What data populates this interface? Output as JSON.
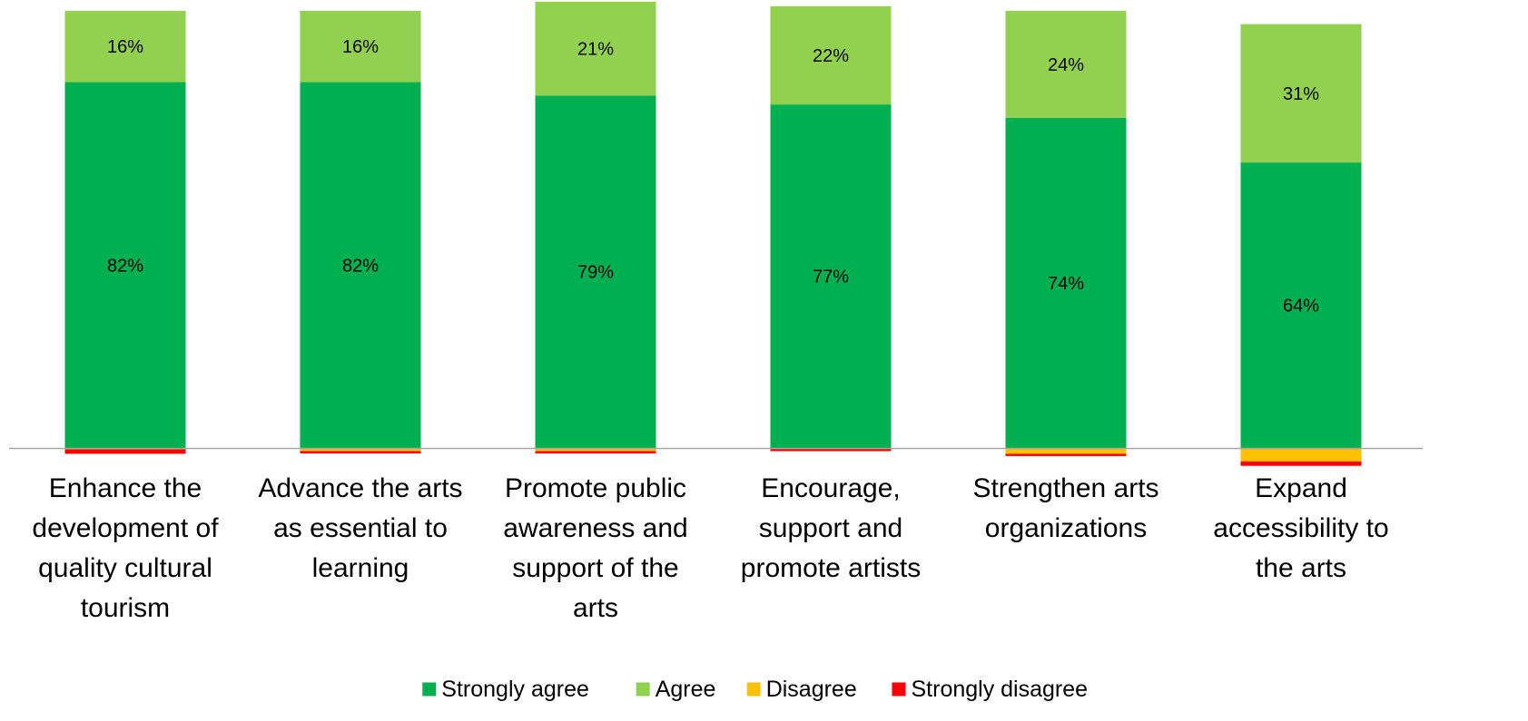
{
  "chart_data": {
    "type": "bar",
    "stacked": true,
    "diverging": true,
    "categories": [
      "Enhance the development of quality cultural tourism",
      "Advance the arts as essential to learning",
      "Promote public awareness and support of the arts",
      "Encourage, support and promote artists",
      "Strengthen arts organizations",
      "Expand accessibility to the arts"
    ],
    "category_lines": [
      [
        "Enhance the",
        "development of",
        "quality cultural",
        "tourism"
      ],
      [
        "Advance the arts",
        "as essential to",
        "learning"
      ],
      [
        "Promote public",
        "awareness and",
        "support of the",
        "arts"
      ],
      [
        "Encourage,",
        "support and",
        "promote artists"
      ],
      [
        "Strengthen arts",
        "organizations"
      ],
      [
        "Expand",
        "accessibility to",
        "the arts"
      ]
    ],
    "series": [
      {
        "name": "Strongly agree",
        "color": "#00B050",
        "direction": "positive",
        "values": [
          82,
          82,
          79,
          77,
          74,
          64
        ],
        "labels": [
          "82%",
          "82%",
          "79%",
          "77%",
          "74%",
          "64%"
        ]
      },
      {
        "name": "Agree",
        "color": "#92D050",
        "direction": "positive",
        "values": [
          16,
          16,
          21,
          22,
          24,
          31
        ],
        "labels": [
          "16%",
          "16%",
          "21%",
          "22%",
          "24%",
          "31%"
        ]
      },
      {
        "name": "Disagree",
        "color": "#FFC000",
        "direction": "negative",
        "values": [
          0.3,
          0.7,
          0.7,
          0.2,
          1.3,
          3
        ],
        "labels": []
      },
      {
        "name": "Strongly disagree",
        "color": "#FF0000",
        "direction": "negative",
        "values": [
          1,
          0.5,
          0.5,
          0.5,
          0.5,
          1
        ],
        "labels": []
      }
    ],
    "ylim": [
      -4,
      104
    ],
    "grid": false,
    "legend": {
      "position": "bottom"
    },
    "axis_color": "#A6A6A6"
  }
}
